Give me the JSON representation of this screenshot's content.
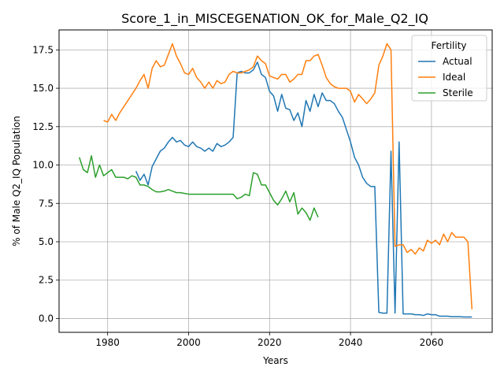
{
  "chart_data": {
    "type": "line",
    "title": "Score_1_in_MISCEGENATION_OK_for_Male_Q2_IQ",
    "xlabel": "Years",
    "ylabel": "% of Male Q2_IQ Population",
    "xlim": [
      1968,
      2075
    ],
    "ylim": [
      -0.9,
      18.8
    ],
    "xticks": [
      1980,
      2000,
      2020,
      2040,
      2060
    ],
    "yticks": [
      0.0,
      2.5,
      5.0,
      7.5,
      10.0,
      12.5,
      15.0,
      17.5
    ],
    "xtick_labels": [
      "1980",
      "2000",
      "2020",
      "2040",
      "2060"
    ],
    "ytick_labels": [
      "0.0",
      "2.5",
      "5.0",
      "7.5",
      "10.0",
      "12.5",
      "15.0",
      "17.5"
    ],
    "grid": true,
    "legend": {
      "title": "Fertility",
      "position": "top-right"
    },
    "series": [
      {
        "name": "Actual",
        "color": "#1f77b4",
        "points": [
          [
            1987,
            9.6
          ],
          [
            1988,
            9.0
          ],
          [
            1989,
            9.4
          ],
          [
            1990,
            8.7
          ],
          [
            1991,
            9.9
          ],
          [
            1992,
            10.4
          ],
          [
            1993,
            10.9
          ],
          [
            1994,
            11.1
          ],
          [
            1995,
            11.5
          ],
          [
            1996,
            11.8
          ],
          [
            1997,
            11.5
          ],
          [
            1998,
            11.6
          ],
          [
            1999,
            11.3
          ],
          [
            2000,
            11.2
          ],
          [
            2001,
            11.5
          ],
          [
            2002,
            11.2
          ],
          [
            2003,
            11.1
          ],
          [
            2004,
            10.9
          ],
          [
            2005,
            11.1
          ],
          [
            2006,
            10.9
          ],
          [
            2007,
            11.4
          ],
          [
            2008,
            11.2
          ],
          [
            2009,
            11.3
          ],
          [
            2010,
            11.5
          ],
          [
            2011,
            11.8
          ],
          [
            2012,
            16.0
          ],
          [
            2013,
            16.1
          ],
          [
            2014,
            16.0
          ],
          [
            2015,
            16.0
          ],
          [
            2016,
            16.2
          ],
          [
            2017,
            16.7
          ],
          [
            2018,
            15.9
          ],
          [
            2019,
            15.7
          ],
          [
            2020,
            14.8
          ],
          [
            2021,
            14.5
          ],
          [
            2022,
            13.5
          ],
          [
            2023,
            14.6
          ],
          [
            2024,
            13.7
          ],
          [
            2025,
            13.6
          ],
          [
            2026,
            12.9
          ],
          [
            2027,
            13.4
          ],
          [
            2028,
            12.5
          ],
          [
            2029,
            14.2
          ],
          [
            2030,
            13.5
          ],
          [
            2031,
            14.6
          ],
          [
            2032,
            13.8
          ],
          [
            2033,
            14.7
          ],
          [
            2034,
            14.2
          ],
          [
            2035,
            14.2
          ],
          [
            2036,
            14.0
          ],
          [
            2037,
            13.5
          ],
          [
            2038,
            13.1
          ],
          [
            2039,
            12.3
          ],
          [
            2040,
            11.5
          ],
          [
            2041,
            10.5
          ],
          [
            2042,
            10.0
          ],
          [
            2043,
            9.2
          ],
          [
            2044,
            8.8
          ],
          [
            2045,
            8.6
          ],
          [
            2046,
            8.6
          ],
          [
            2047,
            0.4
          ],
          [
            2048,
            0.35
          ],
          [
            2049,
            0.35
          ],
          [
            2050,
            10.9
          ],
          [
            2051,
            0.35
          ],
          [
            2052,
            11.5
          ],
          [
            2053,
            0.3
          ],
          [
            2054,
            0.3
          ],
          [
            2055,
            0.3
          ],
          [
            2056,
            0.25
          ],
          [
            2057,
            0.25
          ],
          [
            2058,
            0.2
          ],
          [
            2059,
            0.3
          ],
          [
            2060,
            0.25
          ],
          [
            2061,
            0.25
          ],
          [
            2062,
            0.15
          ],
          [
            2063,
            0.15
          ],
          [
            2064,
            0.15
          ],
          [
            2065,
            0.12
          ],
          [
            2066,
            0.12
          ],
          [
            2067,
            0.12
          ],
          [
            2068,
            0.1
          ],
          [
            2069,
            0.1
          ],
          [
            2070,
            0.1
          ]
        ]
      },
      {
        "name": "Ideal",
        "color": "#ff7f0e",
        "points": [
          [
            1979,
            12.9
          ],
          [
            1980,
            12.8
          ],
          [
            1981,
            13.3
          ],
          [
            1982,
            12.9
          ],
          [
            1983,
            13.4
          ],
          [
            1984,
            13.8
          ],
          [
            1985,
            14.2
          ],
          [
            1986,
            14.6
          ],
          [
            1987,
            15.0
          ],
          [
            1988,
            15.5
          ],
          [
            1989,
            15.9
          ],
          [
            1990,
            15.0
          ],
          [
            1991,
            16.3
          ],
          [
            1992,
            16.8
          ],
          [
            1993,
            16.4
          ],
          [
            1994,
            16.5
          ],
          [
            1995,
            17.2
          ],
          [
            1996,
            17.9
          ],
          [
            1997,
            17.1
          ],
          [
            1998,
            16.6
          ],
          [
            1999,
            16.0
          ],
          [
            2000,
            15.9
          ],
          [
            2001,
            16.3
          ],
          [
            2002,
            15.7
          ],
          [
            2003,
            15.4
          ],
          [
            2004,
            15.0
          ],
          [
            2005,
            15.4
          ],
          [
            2006,
            15.0
          ],
          [
            2007,
            15.5
          ],
          [
            2008,
            15.3
          ],
          [
            2009,
            15.4
          ],
          [
            2010,
            15.9
          ],
          [
            2011,
            16.1
          ],
          [
            2012,
            16.0
          ],
          [
            2013,
            16.0
          ],
          [
            2014,
            16.1
          ],
          [
            2015,
            16.2
          ],
          [
            2016,
            16.4
          ],
          [
            2017,
            17.1
          ],
          [
            2018,
            16.8
          ],
          [
            2019,
            16.6
          ],
          [
            2020,
            15.8
          ],
          [
            2021,
            15.7
          ],
          [
            2022,
            15.6
          ],
          [
            2023,
            15.9
          ],
          [
            2024,
            15.9
          ],
          [
            2025,
            15.4
          ],
          [
            2026,
            15.6
          ],
          [
            2027,
            15.9
          ],
          [
            2028,
            15.9
          ],
          [
            2029,
            16.8
          ],
          [
            2030,
            16.8
          ],
          [
            2031,
            17.1
          ],
          [
            2032,
            17.2
          ],
          [
            2033,
            16.5
          ],
          [
            2034,
            15.7
          ],
          [
            2035,
            15.3
          ],
          [
            2036,
            15.1
          ],
          [
            2037,
            15.0
          ],
          [
            2038,
            15.0
          ],
          [
            2039,
            15.0
          ],
          [
            2040,
            14.8
          ],
          [
            2041,
            14.1
          ],
          [
            2042,
            14.6
          ],
          [
            2043,
            14.3
          ],
          [
            2044,
            14.0
          ],
          [
            2045,
            14.3
          ],
          [
            2046,
            14.7
          ],
          [
            2047,
            16.5
          ],
          [
            2048,
            17.1
          ],
          [
            2049,
            17.9
          ],
          [
            2050,
            17.5
          ],
          [
            2051,
            4.7
          ],
          [
            2052,
            4.8
          ],
          [
            2053,
            4.8
          ],
          [
            2054,
            4.3
          ],
          [
            2055,
            4.5
          ],
          [
            2056,
            4.2
          ],
          [
            2057,
            4.6
          ],
          [
            2058,
            4.4
          ],
          [
            2059,
            5.1
          ],
          [
            2060,
            4.9
          ],
          [
            2061,
            5.1
          ],
          [
            2062,
            4.8
          ],
          [
            2063,
            5.5
          ],
          [
            2064,
            5.0
          ],
          [
            2065,
            5.6
          ],
          [
            2066,
            5.3
          ],
          [
            2067,
            5.3
          ],
          [
            2068,
            5.3
          ],
          [
            2069,
            5.0
          ],
          [
            2070,
            0.6
          ]
        ]
      },
      {
        "name": "Sterile",
        "color": "#2ca02c",
        "points": [
          [
            1973,
            10.5
          ],
          [
            1974,
            9.7
          ],
          [
            1975,
            9.5
          ],
          [
            1976,
            10.6
          ],
          [
            1977,
            9.2
          ],
          [
            1978,
            10.0
          ],
          [
            1979,
            9.3
          ],
          [
            1980,
            9.5
          ],
          [
            1981,
            9.7
          ],
          [
            1982,
            9.2
          ],
          [
            1983,
            9.2
          ],
          [
            1984,
            9.2
          ],
          [
            1985,
            9.1
          ],
          [
            1986,
            9.3
          ],
          [
            1987,
            9.2
          ],
          [
            1988,
            8.7
          ],
          [
            1989,
            8.7
          ],
          [
            1990,
            8.6
          ],
          [
            1991,
            8.4
          ],
          [
            1992,
            8.25
          ],
          [
            1993,
            8.25
          ],
          [
            1994,
            8.3
          ],
          [
            1995,
            8.4
          ],
          [
            1996,
            8.3
          ],
          [
            1997,
            8.2
          ],
          [
            1998,
            8.2
          ],
          [
            1999,
            8.15
          ],
          [
            2000,
            8.1
          ],
          [
            2001,
            8.1
          ],
          [
            2002,
            8.1
          ],
          [
            2003,
            8.1
          ],
          [
            2004,
            8.1
          ],
          [
            2005,
            8.1
          ],
          [
            2006,
            8.1
          ],
          [
            2007,
            8.1
          ],
          [
            2008,
            8.1
          ],
          [
            2009,
            8.1
          ],
          [
            2010,
            8.1
          ],
          [
            2011,
            8.1
          ],
          [
            2012,
            7.8
          ],
          [
            2013,
            7.9
          ],
          [
            2014,
            8.1
          ],
          [
            2015,
            8.0
          ],
          [
            2016,
            9.5
          ],
          [
            2017,
            9.4
          ],
          [
            2018,
            8.7
          ],
          [
            2019,
            8.7
          ],
          [
            2020,
            8.2
          ],
          [
            2021,
            7.7
          ],
          [
            2022,
            7.4
          ],
          [
            2023,
            7.8
          ],
          [
            2024,
            8.3
          ],
          [
            2025,
            7.6
          ],
          [
            2026,
            8.2
          ],
          [
            2027,
            6.8
          ],
          [
            2028,
            7.2
          ],
          [
            2029,
            6.9
          ],
          [
            2030,
            6.4
          ],
          [
            2031,
            7.2
          ],
          [
            2032,
            6.6
          ]
        ]
      }
    ]
  }
}
